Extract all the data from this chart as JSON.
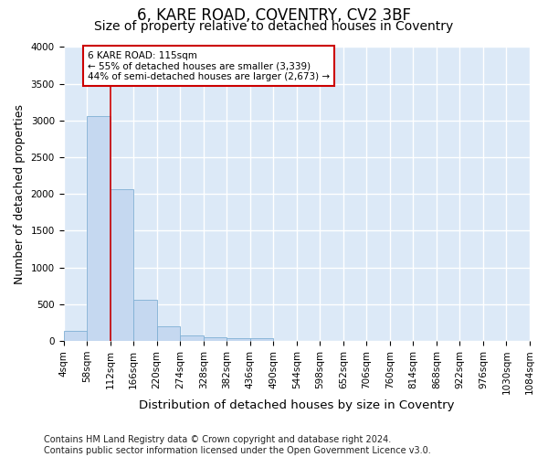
{
  "title": "6, KARE ROAD, COVENTRY, CV2 3BF",
  "subtitle": "Size of property relative to detached houses in Coventry",
  "xlabel": "Distribution of detached houses by size in Coventry",
  "ylabel": "Number of detached properties",
  "bar_color": "#c5d8f0",
  "bar_edge_color": "#7fafd4",
  "vline_color": "#cc0000",
  "vline_x": 112,
  "annotation_text": "6 KARE ROAD: 115sqm\n← 55% of detached houses are smaller (3,339)\n44% of semi-detached houses are larger (2,673) →",
  "annotation_box_color": "#cc0000",
  "background_color": "#dce9f7",
  "fig_background_color": "#ffffff",
  "grid_color": "#ffffff",
  "bin_edges": [
    4,
    58,
    112,
    166,
    220,
    274,
    328,
    382,
    436,
    490,
    544,
    598,
    652,
    706,
    760,
    814,
    868,
    922,
    976,
    1030,
    1084
  ],
  "bar_heights": [
    140,
    3065,
    2060,
    560,
    195,
    75,
    55,
    40,
    40,
    0,
    0,
    0,
    0,
    0,
    0,
    0,
    0,
    0,
    0,
    0
  ],
  "xtick_labels": [
    "4sqm",
    "58sqm",
    "112sqm",
    "166sqm",
    "220sqm",
    "274sqm",
    "328sqm",
    "382sqm",
    "436sqm",
    "490sqm",
    "544sqm",
    "598sqm",
    "652sqm",
    "706sqm",
    "760sqm",
    "814sqm",
    "868sqm",
    "922sqm",
    "976sqm",
    "1030sqm",
    "1084sqm"
  ],
  "ylim": [
    0,
    4000
  ],
  "yticks": [
    0,
    500,
    1000,
    1500,
    2000,
    2500,
    3000,
    3500,
    4000
  ],
  "footer_text": "Contains HM Land Registry data © Crown copyright and database right 2024.\nContains public sector information licensed under the Open Government Licence v3.0.",
  "title_fontsize": 12,
  "subtitle_fontsize": 10,
  "xlabel_fontsize": 9.5,
  "ylabel_fontsize": 9,
  "tick_fontsize": 7.5,
  "footer_fontsize": 7
}
